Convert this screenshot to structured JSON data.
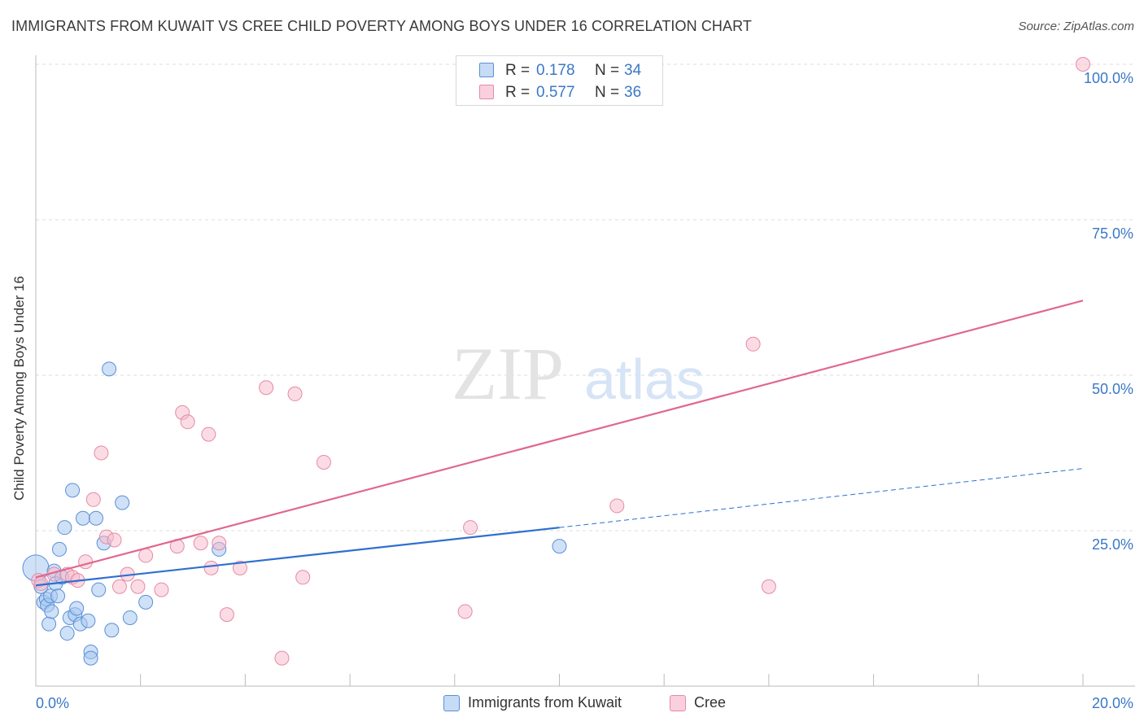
{
  "header": {
    "title": "IMMIGRANTS FROM KUWAIT VS CREE CHILD POVERTY AMONG BOYS UNDER 16 CORRELATION CHART",
    "source": "Source: ZipAtlas.com"
  },
  "watermark": {
    "zip": "ZIP",
    "atlas": "atlas"
  },
  "colors": {
    "blue_fill": "#a8c8f0",
    "blue_stroke": "#5b8fd6",
    "blue_line": "#2f6fcf",
    "pink_fill": "#f7b9cc",
    "pink_stroke": "#e58aa6",
    "pink_line": "#e0688f",
    "axis_text": "#3a78c6",
    "grid": "#dddddd"
  },
  "legend_top": {
    "rows": [
      {
        "r_label": "R =",
        "r_value": "0.178",
        "n_label": "N =",
        "n_value": "34",
        "series": "blue"
      },
      {
        "r_label": "R =",
        "r_value": "0.577",
        "n_label": "N =",
        "n_value": "36",
        "series": "pink"
      }
    ]
  },
  "legend_bottom": {
    "items": [
      {
        "label": "Immigrants from Kuwait",
        "series": "blue"
      },
      {
        "label": "Cree",
        "series": "pink"
      }
    ]
  },
  "chart_data": {
    "type": "scatter",
    "title": "IMMIGRANTS FROM KUWAIT VS CREE CHILD POVERTY AMONG BOYS UNDER 16 CORRELATION CHART",
    "xlabel": "",
    "ylabel": "Child Poverty Among Boys Under 16",
    "xlim": [
      0,
      20
    ],
    "ylim": [
      0,
      100
    ],
    "x_tick_labels": [
      {
        "value": 0,
        "label": "0.0%"
      },
      {
        "value": 20,
        "label": "20.0%"
      }
    ],
    "y_tick_labels": [
      {
        "value": 25,
        "label": "25.0%"
      },
      {
        "value": 50,
        "label": "50.0%"
      },
      {
        "value": 75,
        "label": "75.0%"
      },
      {
        "value": 100,
        "label": "100.0%"
      }
    ],
    "x_minor_ticks": [
      0,
      2,
      4,
      6,
      8,
      10,
      12,
      14,
      16,
      18,
      20
    ],
    "grid": true,
    "series": [
      {
        "name": "Immigrants from Kuwait",
        "color": "blue",
        "r": 0.178,
        "n": 34,
        "trend": {
          "x0": 0,
          "y0": 16.2,
          "x1": 10,
          "y1": 25.5,
          "dashed_to_x": 20,
          "dashed_to_y": 35
        },
        "points": [
          [
            0.0,
            19.0
          ],
          [
            0.15,
            13.5
          ],
          [
            0.2,
            14.0
          ],
          [
            0.22,
            13.0
          ],
          [
            0.25,
            10.0
          ],
          [
            0.28,
            14.5
          ],
          [
            0.3,
            12.0
          ],
          [
            0.35,
            18.5
          ],
          [
            0.38,
            16.5
          ],
          [
            0.42,
            14.5
          ],
          [
            0.45,
            22.0
          ],
          [
            0.5,
            17.5
          ],
          [
            0.55,
            25.5
          ],
          [
            0.6,
            8.5
          ],
          [
            0.65,
            11.0
          ],
          [
            0.7,
            31.5
          ],
          [
            0.75,
            11.5
          ],
          [
            0.78,
            12.5
          ],
          [
            0.85,
            10.0
          ],
          [
            0.9,
            27.0
          ],
          [
            1.0,
            10.5
          ],
          [
            1.05,
            5.5
          ],
          [
            1.05,
            4.5
          ],
          [
            1.15,
            27.0
          ],
          [
            1.2,
            15.5
          ],
          [
            1.3,
            23.0
          ],
          [
            1.4,
            51.0
          ],
          [
            1.45,
            9.0
          ],
          [
            1.65,
            29.5
          ],
          [
            1.8,
            11.0
          ],
          [
            2.1,
            13.5
          ],
          [
            3.5,
            22.0
          ],
          [
            10.0,
            22.5
          ],
          [
            0.1,
            16.0
          ]
        ]
      },
      {
        "name": "Cree",
        "color": "pink",
        "r": 0.577,
        "n": 36,
        "trend": {
          "x0": 0,
          "y0": 17.5,
          "x1": 20,
          "y1": 62.0
        },
        "points": [
          [
            0.05,
            17.0
          ],
          [
            0.1,
            16.5
          ],
          [
            0.35,
            18.0
          ],
          [
            0.6,
            18.0
          ],
          [
            0.7,
            17.5
          ],
          [
            0.8,
            17.0
          ],
          [
            0.95,
            20.0
          ],
          [
            1.1,
            30.0
          ],
          [
            1.25,
            37.5
          ],
          [
            1.35,
            24.0
          ],
          [
            1.5,
            23.5
          ],
          [
            1.6,
            16.0
          ],
          [
            1.75,
            18.0
          ],
          [
            1.95,
            16.0
          ],
          [
            2.1,
            21.0
          ],
          [
            2.4,
            15.5
          ],
          [
            2.7,
            22.5
          ],
          [
            2.8,
            44.0
          ],
          [
            2.9,
            42.5
          ],
          [
            3.15,
            23.0
          ],
          [
            3.3,
            40.5
          ],
          [
            3.35,
            19.0
          ],
          [
            3.5,
            23.0
          ],
          [
            3.65,
            11.5
          ],
          [
            3.9,
            19.0
          ],
          [
            4.4,
            48.0
          ],
          [
            4.7,
            4.5
          ],
          [
            4.95,
            47.0
          ],
          [
            5.1,
            17.5
          ],
          [
            5.5,
            36.0
          ],
          [
            8.2,
            12.0
          ],
          [
            8.3,
            25.5
          ],
          [
            11.1,
            29.0
          ],
          [
            13.7,
            55.0
          ],
          [
            14.0,
            16.0
          ],
          [
            20.0,
            100.0
          ]
        ]
      }
    ]
  }
}
